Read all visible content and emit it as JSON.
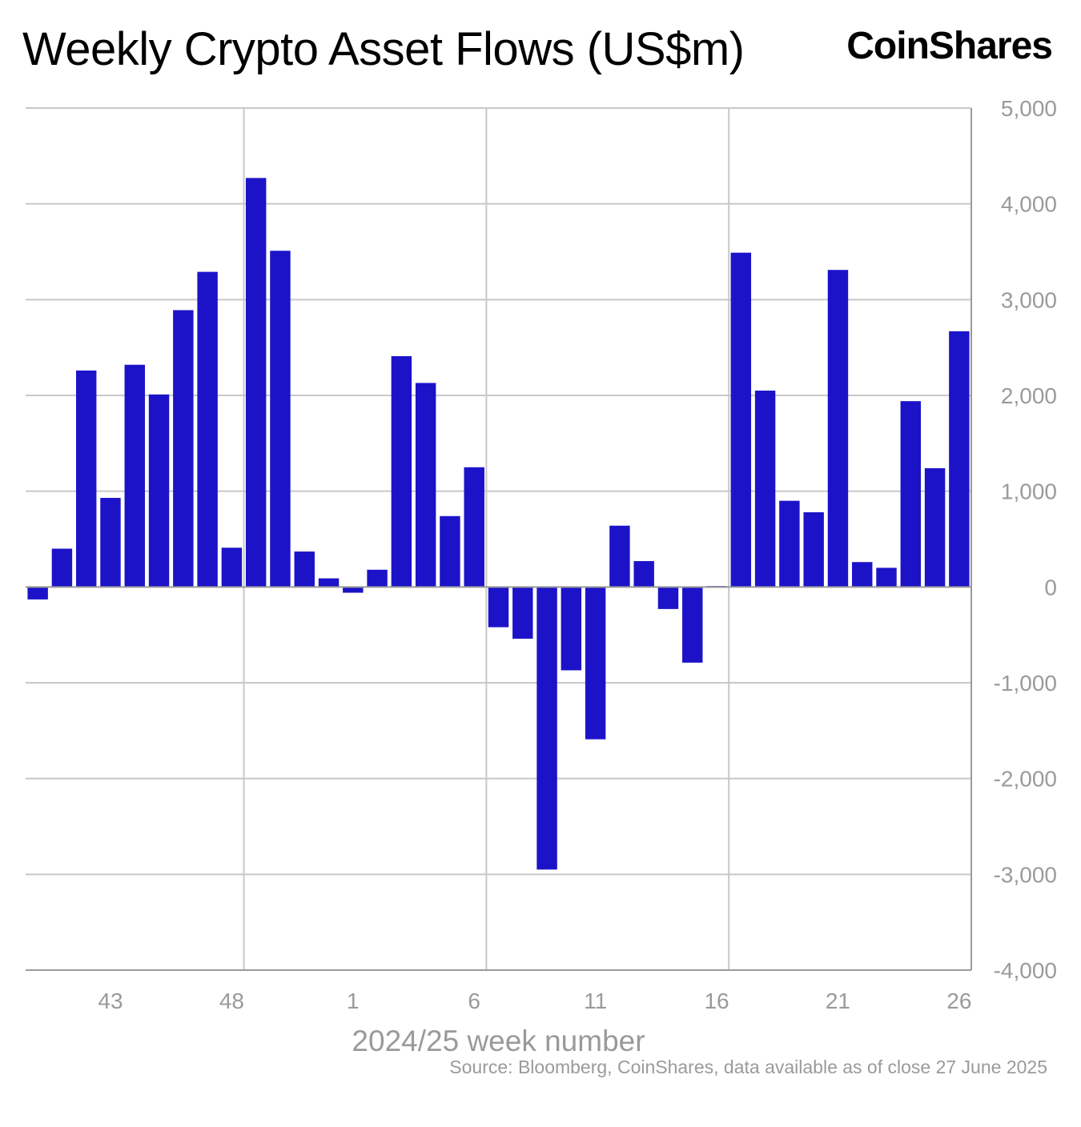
{
  "header": {
    "title": "Weekly Crypto Asset Flows (US$m)",
    "brand": "CoinShares"
  },
  "footer": {
    "source": "Source: Bloomberg, CoinShares, data available as of close 27 June 2025"
  },
  "colors": {
    "bar": "#1c13c9",
    "grid": "#c8c8c8",
    "axis": "#9a9a9a"
  },
  "chart_data": {
    "type": "bar",
    "title": "Weekly Crypto Asset Flows (US$m)",
    "xlabel": "2024/25 week number",
    "ylabel": "",
    "ylim": [
      -4000,
      5000
    ],
    "y_ticks": [
      5000,
      4000,
      3000,
      2000,
      1000,
      0,
      -1000,
      -2000,
      -3000,
      -4000
    ],
    "y_tick_labels": [
      "5,000",
      "4,000",
      "3,000",
      "2,000",
      "1,000",
      "0",
      "-1,000",
      "-2,000",
      "-3,000",
      "-4,000"
    ],
    "y_axis_side": "right",
    "x_tick_labels": [
      "43",
      "48",
      "1",
      "6",
      "11",
      "16",
      "21",
      "26"
    ],
    "grid": true,
    "legend": "none",
    "categories": [
      "40",
      "41",
      "42",
      "43",
      "44",
      "45",
      "46",
      "47",
      "48",
      "49",
      "50",
      "51",
      "52",
      "1",
      "2",
      "3",
      "4",
      "5",
      "6",
      "7",
      "8",
      "9",
      "10",
      "11",
      "12",
      "13",
      "14",
      "15",
      "16",
      "17",
      "18",
      "19",
      "20",
      "21",
      "22",
      "23",
      "24",
      "25",
      "26"
    ],
    "values": [
      -130,
      400,
      2260,
      930,
      2320,
      2010,
      2890,
      3290,
      410,
      4270,
      3510,
      370,
      90,
      -60,
      180,
      2410,
      2130,
      740,
      1250,
      -420,
      -540,
      -2950,
      -870,
      -1590,
      640,
      270,
      -230,
      -790,
      10,
      3490,
      2050,
      900,
      780,
      3310,
      260,
      200,
      1940,
      1240,
      2670
    ]
  }
}
